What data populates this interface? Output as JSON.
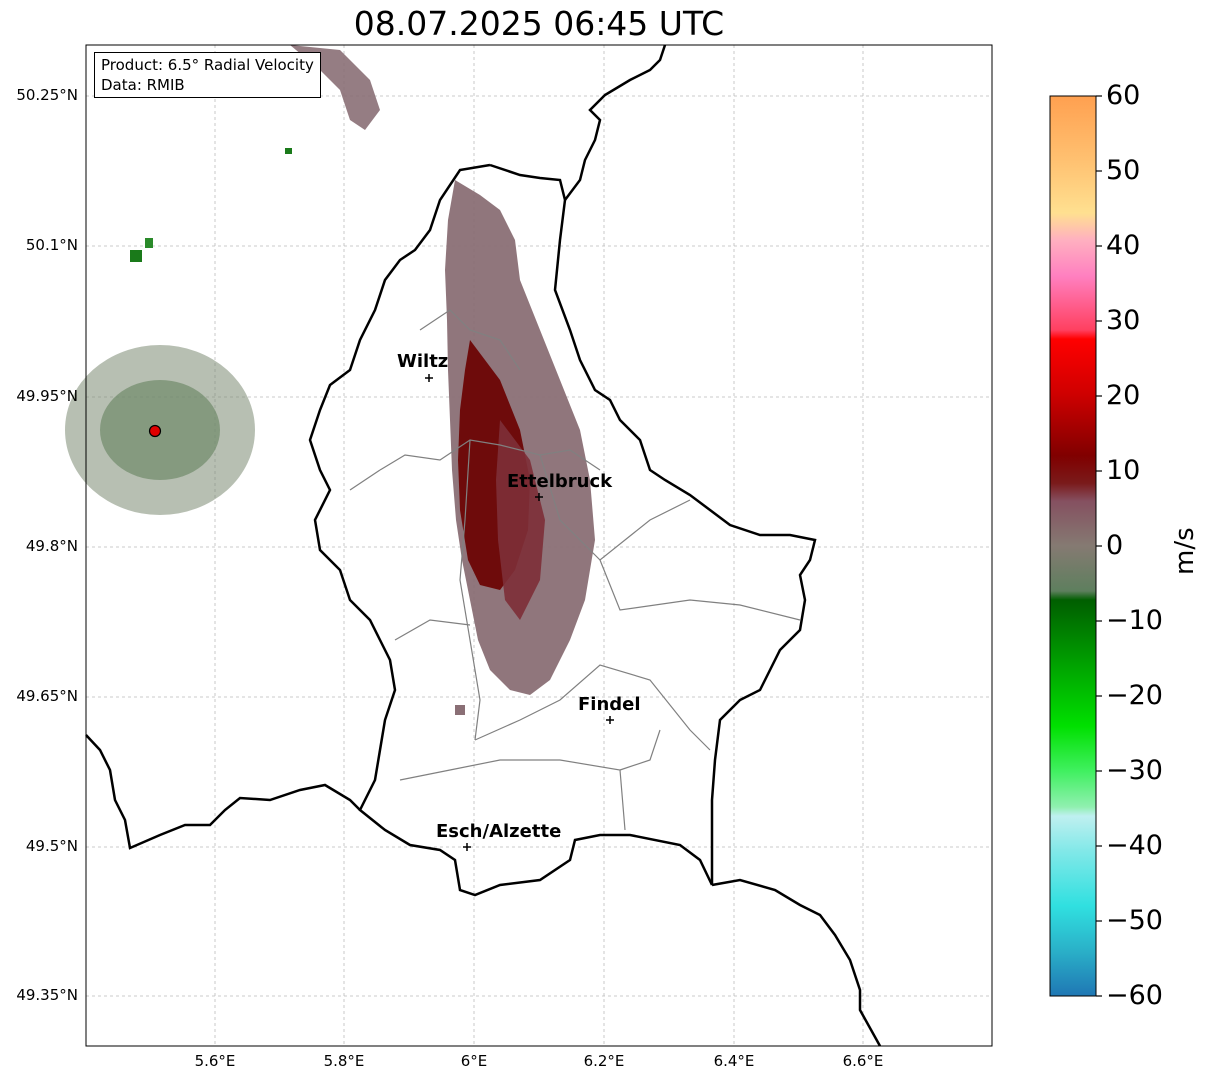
{
  "title": "08.07.2025 06:45 UTC",
  "info": {
    "product": "Product: 6.5° Radial Velocity",
    "data": "Data: RMIB"
  },
  "lat_labels": [
    "50.25°N",
    "50.1°N",
    "49.95°N",
    "49.8°N",
    "49.65°N",
    "49.5°N",
    "49.35°N"
  ],
  "lon_labels": [
    "5.6°E",
    "5.8°E",
    "6°E",
    "6.2°E",
    "6.4°E",
    "6.6°E"
  ],
  "cities": [
    {
      "name": "Wiltz"
    },
    {
      "name": "Ettelbruck"
    },
    {
      "name": "Findel"
    },
    {
      "name": "Esch/Alzette"
    }
  ],
  "colorbar": {
    "unit": "m/s",
    "min": -60,
    "max": 60,
    "ticks": [
      "60",
      "50",
      "40",
      "30",
      "20",
      "10",
      "0",
      "−10",
      "−20",
      "−30",
      "−40",
      "−50",
      "−60"
    ]
  },
  "colors": {
    "positive_low": "#7a1a1a",
    "neutral": "#8a7070",
    "negative_low": "#5e7f5e"
  }
}
